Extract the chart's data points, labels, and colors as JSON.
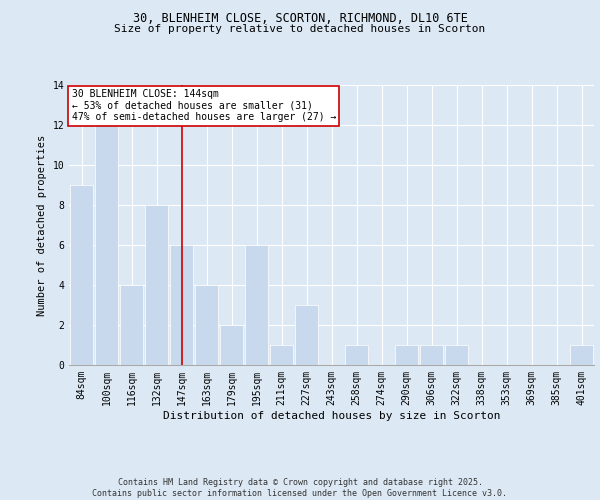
{
  "title1": "30, BLENHEIM CLOSE, SCORTON, RICHMOND, DL10 6TE",
  "title2": "Size of property relative to detached houses in Scorton",
  "xlabel": "Distribution of detached houses by size in Scorton",
  "ylabel": "Number of detached properties",
  "categories": [
    "84sqm",
    "100sqm",
    "116sqm",
    "132sqm",
    "147sqm",
    "163sqm",
    "179sqm",
    "195sqm",
    "211sqm",
    "227sqm",
    "243sqm",
    "258sqm",
    "274sqm",
    "290sqm",
    "306sqm",
    "322sqm",
    "338sqm",
    "353sqm",
    "369sqm",
    "385sqm",
    "401sqm"
  ],
  "values": [
    9,
    12,
    4,
    8,
    6,
    4,
    2,
    6,
    1,
    3,
    0,
    1,
    0,
    1,
    1,
    1,
    0,
    0,
    0,
    0,
    1
  ],
  "bar_color": "#c9d9ed",
  "bar_edge_color": "#ffffff",
  "vline_x_idx": 4,
  "vline_color": "#cc0000",
  "annotation_text": "30 BLENHEIM CLOSE: 144sqm\n← 53% of detached houses are smaller (31)\n47% of semi-detached houses are larger (27) →",
  "annotation_box_color": "#ffffff",
  "annotation_box_edge": "#cc0000",
  "background_color": "#dce9f5",
  "plot_bg_color": "#dce9f5",
  "footer": "Contains HM Land Registry data © Crown copyright and database right 2025.\nContains public sector information licensed under the Open Government Licence v3.0.",
  "ylim": [
    0,
    14
  ],
  "yticks": [
    0,
    2,
    4,
    6,
    8,
    10,
    12,
    14
  ],
  "title1_fontsize": 8.5,
  "title2_fontsize": 8.0,
  "xlabel_fontsize": 8.0,
  "ylabel_fontsize": 7.5,
  "tick_fontsize": 7.0,
  "ann_fontsize": 7.0,
  "footer_fontsize": 6.0
}
